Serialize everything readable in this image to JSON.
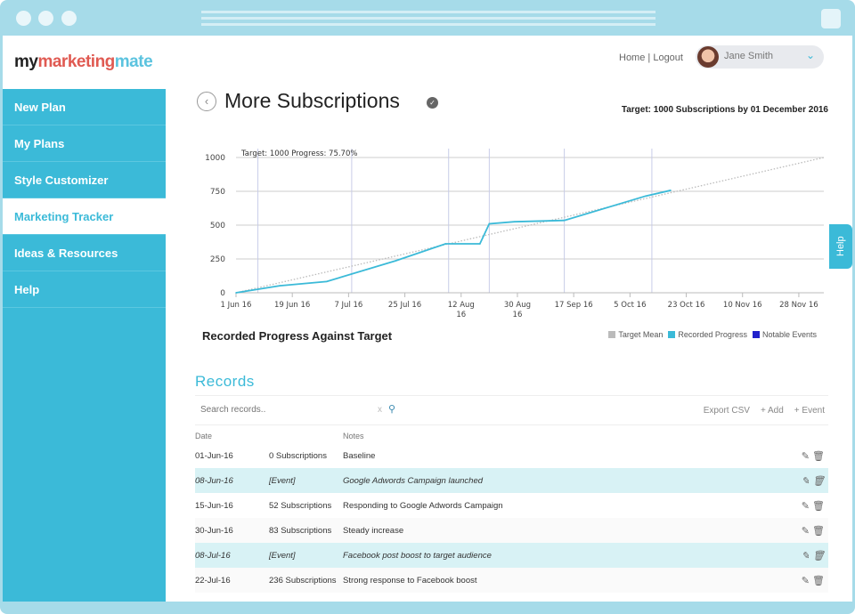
{
  "brand": {
    "logo_my": "my",
    "logo_marketing": "marketing",
    "logo_mate": "mate"
  },
  "sidebar": {
    "items": [
      {
        "label": "New Plan"
      },
      {
        "label": "My Plans"
      },
      {
        "label": "Style Customizer"
      },
      {
        "label": "Marketing Tracker",
        "active": true
      },
      {
        "label": "Ideas & Resources"
      },
      {
        "label": "Help"
      }
    ]
  },
  "header": {
    "home": "Home",
    "sep": "|",
    "logout": "Logout",
    "user": "Jane Smith"
  },
  "page": {
    "title": "More Subscriptions",
    "target": "Target: 1000 Subscriptions by 01 December 2016",
    "help": "Help"
  },
  "chart_data": {
    "type": "line",
    "annotation": "Target: 1000 Progress: 75.70%",
    "title": "Recorded Progress Against Target",
    "ylim": [
      0,
      1000
    ],
    "yticks": [
      "0",
      "250",
      "500",
      "750",
      "1000"
    ],
    "xstart": "2016-06-01",
    "xend": "2016-12-06",
    "xticks": [
      [
        "1 Jun 16",
        "2016-06-01"
      ],
      [
        "19 Jun 16",
        "2016-06-19"
      ],
      [
        "7 Jul 16",
        "2016-07-07"
      ],
      [
        "25 Jul 16",
        "2016-07-25"
      ],
      [
        "12 Aug 16",
        "2016-08-12"
      ],
      [
        "30 Aug 16",
        "2016-08-30"
      ],
      [
        "17 Sep 16",
        "2016-09-17"
      ],
      [
        "5 Oct 16",
        "2016-10-05"
      ],
      [
        "23 Oct 16",
        "2016-10-23"
      ],
      [
        "10 Nov 16",
        "2016-11-10"
      ],
      [
        "28 Nov 16",
        "2016-11-28"
      ]
    ],
    "legend": [
      "Target Mean",
      "Recorded Progress",
      "Notable Events"
    ],
    "colors": {
      "target": "#bbbbbb",
      "progress": "#3bbad8",
      "events": "#2222cc",
      "eventline": "#c8cce8"
    },
    "target_mean": [
      [
        "2016-06-01",
        0
      ],
      [
        "2016-12-06",
        1000
      ]
    ],
    "series": [
      {
        "name": "Recorded Progress",
        "points": [
          [
            "2016-06-01",
            0
          ],
          [
            "2016-06-15",
            52
          ],
          [
            "2016-06-30",
            83
          ],
          [
            "2016-07-22",
            236
          ],
          [
            "2016-08-07",
            362
          ],
          [
            "2016-08-18",
            362
          ],
          [
            "2016-08-21",
            510
          ],
          [
            "2016-08-29",
            525
          ],
          [
            "2016-09-14",
            535
          ],
          [
            "2016-10-10",
            715
          ],
          [
            "2016-10-18",
            757
          ]
        ]
      }
    ],
    "events": [
      "2016-06-08",
      "2016-07-08",
      "2016-08-08",
      "2016-08-21",
      "2016-09-14",
      "2016-10-12"
    ]
  },
  "records": {
    "heading": "Records",
    "search_placeholder": "Search records..",
    "clear": "x",
    "actions": {
      "export": "Export CSV",
      "add": "+ Add",
      "event": "+ Event"
    },
    "columns": [
      "Date",
      "",
      "Notes"
    ],
    "rows": [
      {
        "date": "01-Jun-16",
        "value": "0 Subscriptions",
        "notes": "Baseline",
        "event": false
      },
      {
        "date": "08-Jun-16",
        "value": "[Event]",
        "notes": "Google Adwords Campaign launched",
        "event": true
      },
      {
        "date": "15-Jun-16",
        "value": "52 Subscriptions",
        "notes": "Responding to Google Adwords Campaign",
        "event": false
      },
      {
        "date": "30-Jun-16",
        "value": "83 Subscriptions",
        "notes": "Steady increase",
        "event": false
      },
      {
        "date": "08-Jul-16",
        "value": "[Event]",
        "notes": "Facebook post boost to target audience",
        "event": true
      },
      {
        "date": "22-Jul-16",
        "value": "236 Subscriptions",
        "notes": "Strong response to Facebook boost",
        "event": false
      }
    ]
  }
}
